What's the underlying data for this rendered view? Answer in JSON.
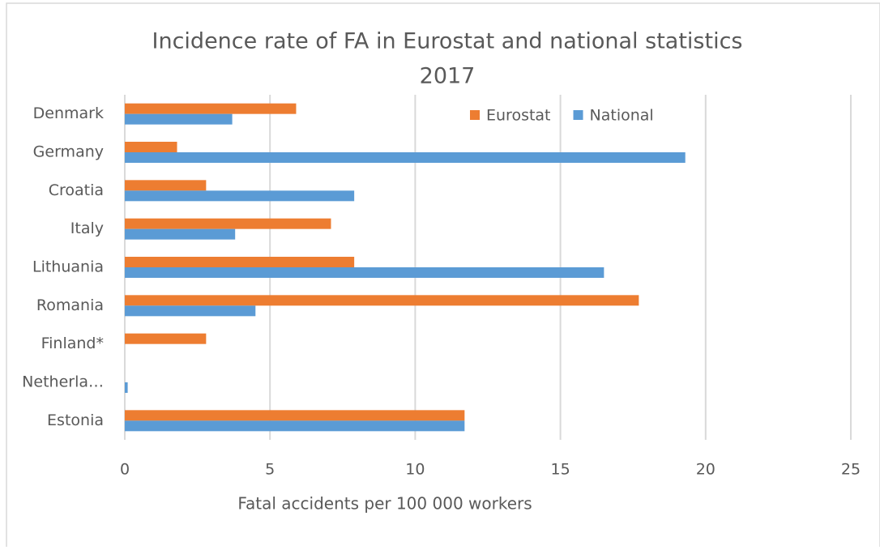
{
  "chart_data": {
    "type": "hbar",
    "title": [
      "Incidence rate of FA in Eurostat and national statistics",
      "2017"
    ],
    "x_label": "Fatal accidents per 100 000 workers",
    "categories": [
      "Denmark",
      "Germany",
      "Croatia",
      "Italy",
      "Lithuania",
      "Romania",
      "Finland*",
      "Netherla…",
      "Estonia"
    ],
    "series": [
      {
        "name": "Eurostat",
        "color": "#ED7D31",
        "values": [
          5.9,
          1.8,
          2.8,
          7.1,
          7.9,
          17.7,
          2.8,
          0,
          11.7
        ]
      },
      {
        "name": "National",
        "color": "#5B9BD5",
        "values": [
          3.7,
          19.3,
          7.9,
          3.8,
          16.5,
          4.5,
          0,
          0.1,
          11.7
        ]
      }
    ],
    "xlim": [
      0,
      25
    ],
    "xticks": [
      0,
      5,
      10,
      15,
      20,
      25
    ],
    "grid": true,
    "legend": "top-right"
  }
}
